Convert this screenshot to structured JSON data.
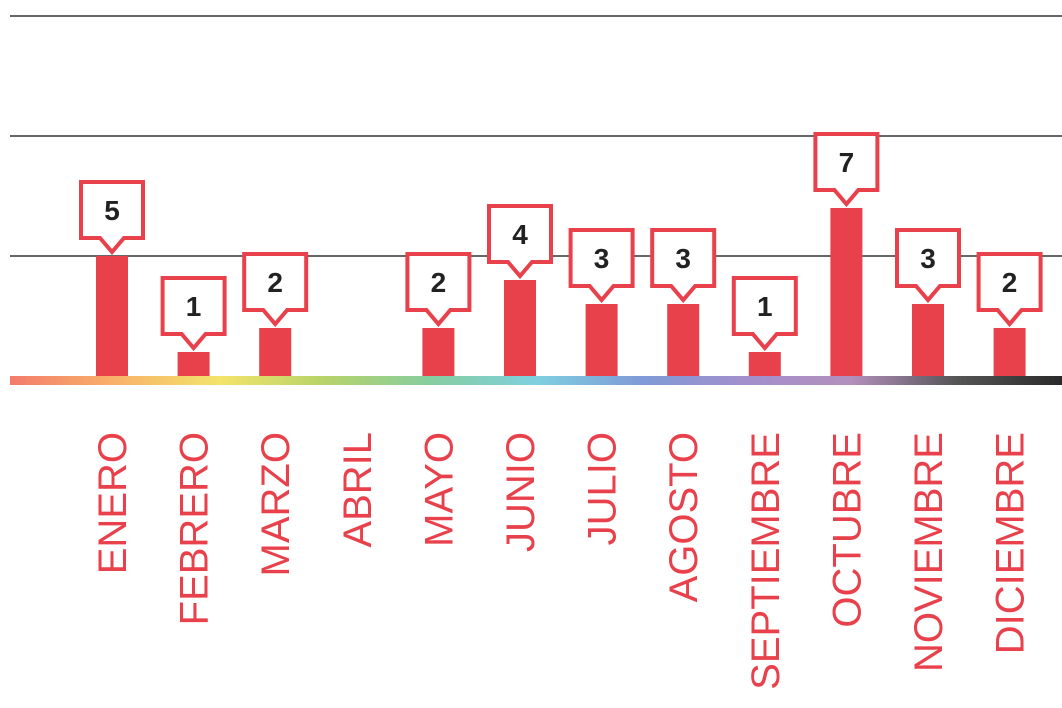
{
  "chart_data": {
    "type": "bar",
    "categories": [
      "ENERO",
      "FEBRERO",
      "MARZO",
      "ABRIL",
      "MAYO",
      "JUNIO",
      "JULIO",
      "AGOSTO",
      "SEPTIEMBRE",
      "OCTUBRE",
      "NOVIEMBRE",
      "DICIEMBRE"
    ],
    "values": [
      5,
      1,
      2,
      0,
      2,
      4,
      3,
      3,
      1,
      7,
      3,
      2
    ],
    "ylim": [
      0,
      15
    ],
    "grid": true,
    "data_labels": true,
    "colors": {
      "bar": "#e8414c",
      "label_box_border": "#e8414c",
      "label_text": "#222222",
      "gridline": "#666666",
      "axis_gradient": [
        "#f47b6b",
        "#f8b26a",
        "#f3e36b",
        "#b6d36a",
        "#86cda0",
        "#7fd0e0",
        "#7f9ad8",
        "#a38fcc",
        "#b38fbd",
        "#555555",
        "#2a2a2a"
      ]
    }
  }
}
